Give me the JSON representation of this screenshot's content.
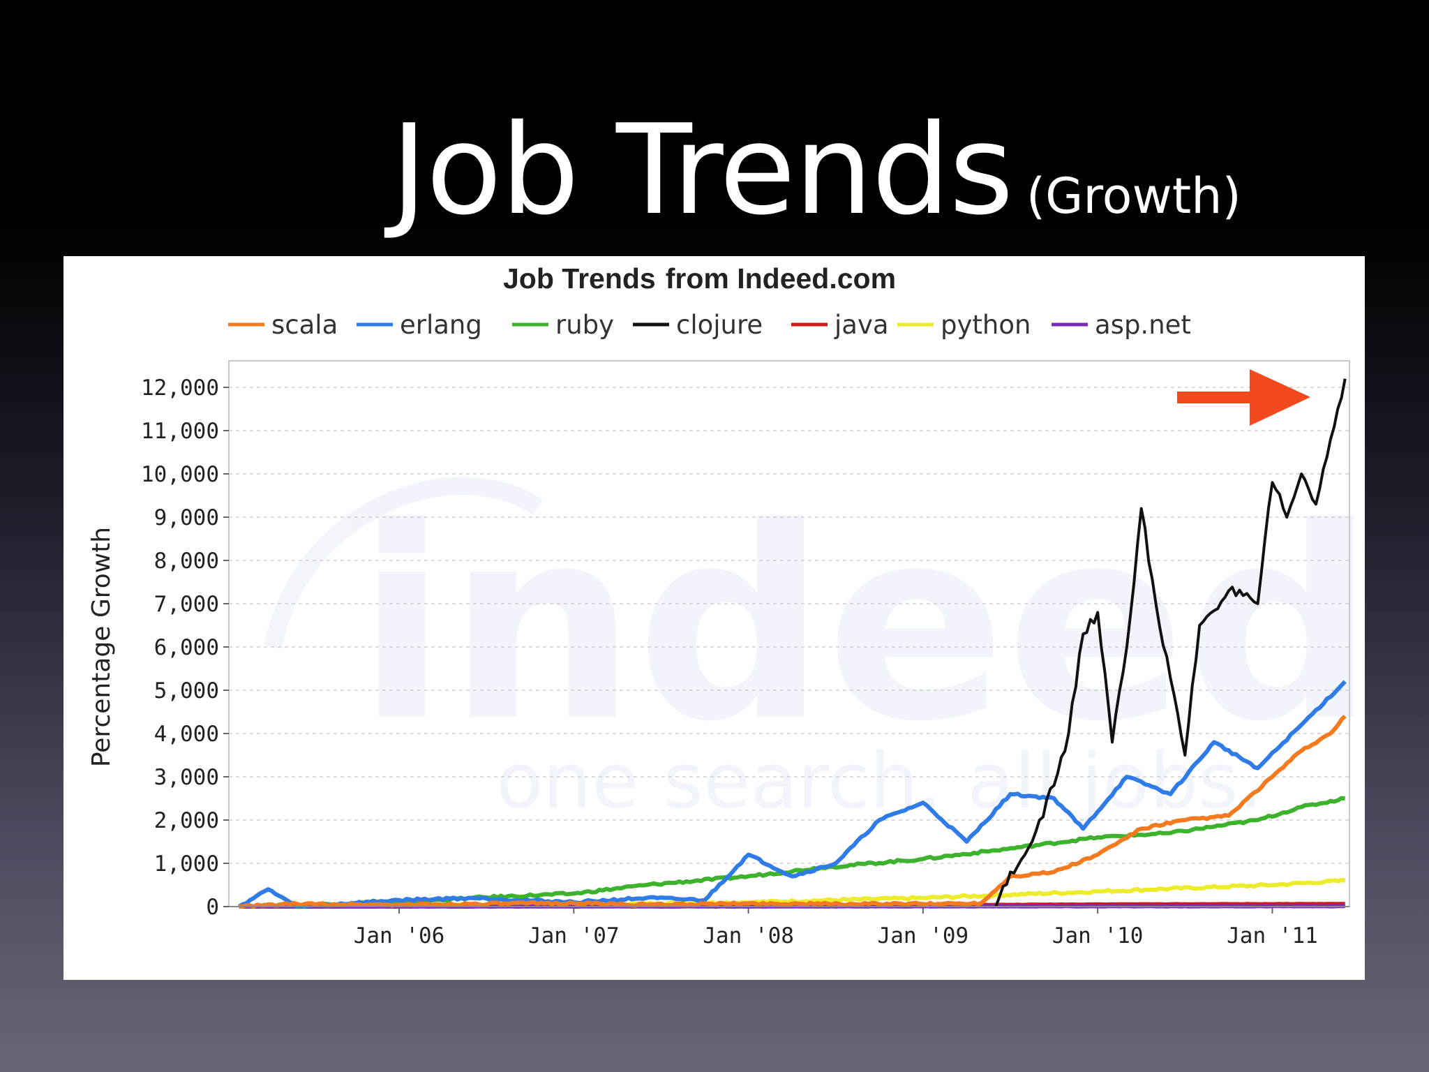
{
  "slide": {
    "title": "Job Trends",
    "subtitle": "(Growth)"
  },
  "chart_data": {
    "type": "line",
    "title_bold": "Job Trends",
    "title_rest": "from Indeed.com",
    "ylabel": "Percentage Growth",
    "xlabel": "",
    "xticks": [
      "Jan '06",
      "Jan '07",
      "Jan '08",
      "Jan '09",
      "Jan '10",
      "Jan '11"
    ],
    "yticks": [
      "0",
      "1,000",
      "2,000",
      "3,000",
      "4,000",
      "5,000",
      "6,000",
      "7,000",
      "8,000",
      "9,000",
      "10,000",
      "11,000",
      "12,000"
    ],
    "ylim": [
      0,
      12000
    ],
    "xlim": [
      "2005-02",
      "2011-06"
    ],
    "grid": true,
    "legend_position": "top",
    "watermark": "indeed one search. all jobs.",
    "series": [
      {
        "name": "scala",
        "color": "#f47a1f",
        "points": [
          [
            "2005-02",
            0
          ],
          [
            "2005-06",
            60
          ],
          [
            "2006-01",
            40
          ],
          [
            "2006-06",
            60
          ],
          [
            "2007-01",
            80
          ],
          [
            "2007-06",
            40
          ],
          [
            "2008-01",
            70
          ],
          [
            "2008-06",
            60
          ],
          [
            "2009-01",
            60
          ],
          [
            "2009-05",
            80
          ],
          [
            "2009-07",
            700
          ],
          [
            "2009-10",
            800
          ],
          [
            "2010-01",
            1200
          ],
          [
            "2010-04",
            1800
          ],
          [
            "2010-07",
            2000
          ],
          [
            "2010-10",
            2100
          ],
          [
            "2011-01",
            3000
          ],
          [
            "2011-03",
            3600
          ],
          [
            "2011-05",
            4000
          ],
          [
            "2011-06",
            4400
          ]
        ]
      },
      {
        "name": "erlang",
        "color": "#2f7be8",
        "points": [
          [
            "2005-02",
            0
          ],
          [
            "2005-04",
            400
          ],
          [
            "2005-06",
            0
          ],
          [
            "2006-01",
            150
          ],
          [
            "2006-06",
            200
          ],
          [
            "2007-01",
            100
          ],
          [
            "2007-06",
            200
          ],
          [
            "2007-10",
            150
          ],
          [
            "2008-01",
            1200
          ],
          [
            "2008-04",
            700
          ],
          [
            "2008-07",
            1000
          ],
          [
            "2008-10",
            2000
          ],
          [
            "2009-01",
            2400
          ],
          [
            "2009-04",
            1500
          ],
          [
            "2009-07",
            2600
          ],
          [
            "2009-10",
            2500
          ],
          [
            "2009-12",
            1800
          ],
          [
            "2010-03",
            3000
          ],
          [
            "2010-06",
            2600
          ],
          [
            "2010-09",
            3800
          ],
          [
            "2010-12",
            3200
          ],
          [
            "2011-03",
            4200
          ],
          [
            "2011-06",
            5200
          ]
        ]
      },
      {
        "name": "ruby",
        "color": "#3db22d",
        "points": [
          [
            "2005-02",
            0
          ],
          [
            "2006-01",
            100
          ],
          [
            "2006-06",
            200
          ],
          [
            "2007-01",
            300
          ],
          [
            "2007-06",
            500
          ],
          [
            "2008-01",
            700
          ],
          [
            "2008-06",
            900
          ],
          [
            "2009-01",
            1100
          ],
          [
            "2009-06",
            1300
          ],
          [
            "2010-01",
            1600
          ],
          [
            "2010-06",
            1700
          ],
          [
            "2010-12",
            2000
          ],
          [
            "2011-03",
            2300
          ],
          [
            "2011-06",
            2500
          ]
        ]
      },
      {
        "name": "clojure",
        "color": "#111111",
        "points": [
          [
            "2009-06",
            0
          ],
          [
            "2009-07",
            800
          ],
          [
            "2009-08",
            1200
          ],
          [
            "2009-09",
            2000
          ],
          [
            "2009-10",
            2800
          ],
          [
            "2009-11",
            4000
          ],
          [
            "2009-12",
            6300
          ],
          [
            "2010-01",
            6800
          ],
          [
            "2010-02",
            3800
          ],
          [
            "2010-03",
            6000
          ],
          [
            "2010-04",
            9200
          ],
          [
            "2010-05",
            7000
          ],
          [
            "2010-07",
            3500
          ],
          [
            "2010-08",
            6500
          ],
          [
            "2010-10",
            7300
          ],
          [
            "2010-12",
            7000
          ],
          [
            "2011-01",
            9800
          ],
          [
            "2011-02",
            9000
          ],
          [
            "2011-03",
            10000
          ],
          [
            "2011-04",
            9300
          ],
          [
            "2011-05",
            10800
          ],
          [
            "2011-06",
            12200
          ]
        ]
      },
      {
        "name": "java",
        "color": "#d11b1b",
        "points": [
          [
            "2005-02",
            0
          ],
          [
            "2007-01",
            20
          ],
          [
            "2008-01",
            20
          ],
          [
            "2009-01",
            30
          ],
          [
            "2010-01",
            50
          ],
          [
            "2011-06",
            60
          ]
        ]
      },
      {
        "name": "python",
        "color": "#ecec2c",
        "points": [
          [
            "2005-02",
            0
          ],
          [
            "2007-01",
            50
          ],
          [
            "2008-01",
            100
          ],
          [
            "2009-01",
            200
          ],
          [
            "2010-01",
            350
          ],
          [
            "2011-01",
            500
          ],
          [
            "2011-06",
            600
          ]
        ]
      },
      {
        "name": "asp.net",
        "color": "#7b2bb8",
        "points": [
          [
            "2005-02",
            0
          ],
          [
            "2011-06",
            10
          ]
        ]
      }
    ]
  }
}
